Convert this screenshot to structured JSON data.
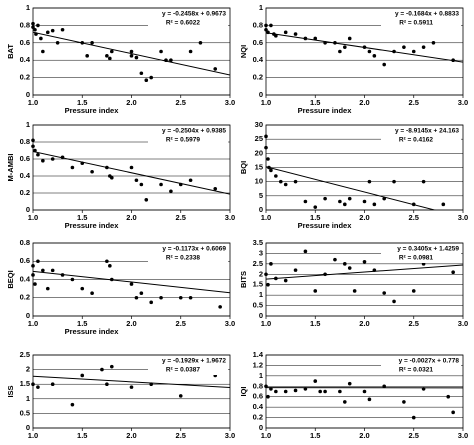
{
  "chart_data": [
    {
      "type": "scatter",
      "ylabel": "BAT",
      "xlabel": "Pressure index",
      "color": "#000000",
      "grid": true,
      "xlim": [
        1,
        3
      ],
      "ylim": [
        0,
        1
      ],
      "xticks": [
        {
          "value": 1,
          "label": "1.0"
        },
        {
          "value": 1.5,
          "label": "1.5"
        },
        {
          "value": 2,
          "label": "2.0"
        },
        {
          "value": 2.5,
          "label": "2.5"
        },
        {
          "value": 3,
          "label": "3.0"
        }
      ],
      "yticks": [
        0,
        0.2,
        0.4,
        0.6,
        0.8,
        1
      ],
      "x": [
        1.0,
        1.0,
        1.02,
        1.03,
        1.05,
        1.08,
        1.1,
        1.15,
        1.2,
        1.25,
        1.3,
        1.5,
        1.55,
        1.6,
        1.75,
        1.78,
        1.8,
        2.0,
        2.0,
        2.05,
        2.1,
        2.15,
        2.2,
        2.3,
        2.35,
        2.4,
        2.6,
        2.7,
        2.85
      ],
      "values": [
        0.82,
        0.78,
        0.75,
        0.7,
        0.8,
        0.65,
        0.5,
        0.72,
        0.74,
        0.6,
        0.75,
        0.6,
        0.45,
        0.6,
        0.45,
        0.42,
        0.5,
        0.5,
        0.45,
        0.43,
        0.25,
        0.17,
        0.2,
        0.5,
        0.4,
        0.4,
        0.5,
        0.6,
        0.3
      ],
      "equation": "y = -0.2458x + 0.9673",
      "r_squared": "R² = 0.6022",
      "trend": {
        "slope": -0.2458,
        "intercept": 0.9673
      }
    },
    {
      "type": "scatter",
      "ylabel": "NQI",
      "xlabel": "Pressure index",
      "color": "#000000",
      "grid": true,
      "xlim": [
        1,
        3
      ],
      "ylim": [
        0,
        1
      ],
      "xticks": [
        {
          "value": 1,
          "label": "1.0"
        },
        {
          "value": 1.5,
          "label": "1.5"
        },
        {
          "value": 2,
          "label": "2.0"
        },
        {
          "value": 2.5,
          "label": "2.5"
        },
        {
          "value": 3,
          "label": "3.0"
        }
      ],
      "yticks": [
        0,
        0.2,
        0.4,
        0.6,
        0.8,
        1
      ],
      "x": [
        1.0,
        1.0,
        1.02,
        1.05,
        1.08,
        1.1,
        1.2,
        1.3,
        1.4,
        1.5,
        1.6,
        1.7,
        1.75,
        1.8,
        1.85,
        2.0,
        2.05,
        2.1,
        2.2,
        2.3,
        2.4,
        2.5,
        2.6,
        2.7,
        2.9
      ],
      "values": [
        0.8,
        0.75,
        0.72,
        0.8,
        0.7,
        0.68,
        0.72,
        0.7,
        0.65,
        0.65,
        0.6,
        0.6,
        0.5,
        0.55,
        0.65,
        0.55,
        0.5,
        0.45,
        0.35,
        0.5,
        0.55,
        0.5,
        0.55,
        0.6,
        0.4
      ],
      "equation": "y = -0.1684x + 0.8833",
      "r_squared": "R² = 0.5911",
      "trend": {
        "slope": -0.1684,
        "intercept": 0.8833
      }
    },
    {
      "type": "scatter",
      "ylabel": "M-AMBI",
      "xlabel": "Pressure index",
      "color": "#000000",
      "grid": true,
      "xlim": [
        1,
        3
      ],
      "ylim": [
        0,
        1
      ],
      "xticks": [
        {
          "value": 1,
          "label": "1.0"
        },
        {
          "value": 1.5,
          "label": "1.5"
        },
        {
          "value": 2,
          "label": "2.0"
        },
        {
          "value": 2.5,
          "label": "2.5"
        },
        {
          "value": 3,
          "label": "3.0"
        }
      ],
      "yticks": [
        0,
        0.2,
        0.4,
        0.6,
        0.8,
        1
      ],
      "x": [
        1.0,
        1.0,
        1.02,
        1.05,
        1.1,
        1.2,
        1.3,
        1.4,
        1.5,
        1.6,
        1.75,
        1.78,
        1.8,
        2.0,
        2.05,
        2.1,
        2.15,
        2.3,
        2.4,
        2.5,
        2.6,
        2.85
      ],
      "values": [
        0.82,
        0.75,
        0.7,
        0.65,
        0.58,
        0.6,
        0.62,
        0.5,
        0.55,
        0.45,
        0.5,
        0.4,
        0.38,
        0.5,
        0.35,
        0.3,
        0.12,
        0.3,
        0.22,
        0.3,
        0.35,
        0.25
      ],
      "equation": "y = -0.2504x + 0.9385",
      "r_squared": "R² = 0.5979",
      "trend": {
        "slope": -0.2504,
        "intercept": 0.9385
      }
    },
    {
      "type": "scatter",
      "ylabel": "BQI",
      "xlabel": "Pressure index",
      "color": "#000000",
      "grid": true,
      "xlim": [
        1,
        3
      ],
      "ylim": [
        0,
        30
      ],
      "xticks": [
        {
          "value": 1,
          "label": "1.0"
        },
        {
          "value": 1.5,
          "label": "1.5"
        },
        {
          "value": 2,
          "label": "2.0"
        },
        {
          "value": 2.5,
          "label": "2.5"
        },
        {
          "value": 3,
          "label": "3.0"
        }
      ],
      "yticks": [
        0,
        5,
        10,
        15,
        20,
        25,
        30
      ],
      "x": [
        1.0,
        1.0,
        1.02,
        1.03,
        1.05,
        1.1,
        1.15,
        1.2,
        1.3,
        1.4,
        1.5,
        1.6,
        1.75,
        1.8,
        1.85,
        2.0,
        2.05,
        2.1,
        2.2,
        2.3,
        2.5,
        2.6,
        2.8
      ],
      "values": [
        26,
        22,
        18,
        15,
        14,
        12,
        10,
        9,
        10,
        3,
        1,
        4,
        3,
        2,
        4,
        3,
        10,
        2,
        4,
        10,
        2,
        10,
        2
      ],
      "equation": "y = -8.9145x + 24.163",
      "r_squared": "R² = 0.4162",
      "trend": {
        "slope": -8.9145,
        "intercept": 24.163
      }
    },
    {
      "type": "scatter",
      "ylabel": "BEQI",
      "xlabel": "Pressure index",
      "color": "#000000",
      "grid": true,
      "xlim": [
        1,
        3
      ],
      "ylim": [
        0,
        0.8
      ],
      "xticks": [
        {
          "value": 1,
          "label": "1.0"
        },
        {
          "value": 1.5,
          "label": "1.5"
        },
        {
          "value": 2,
          "label": "2.0"
        },
        {
          "value": 2.5,
          "label": "2.5"
        },
        {
          "value": 3,
          "label": "3.0"
        }
      ],
      "yticks": [
        0,
        0.2,
        0.4,
        0.6,
        0.8
      ],
      "x": [
        1.0,
        1.0,
        1.02,
        1.05,
        1.1,
        1.15,
        1.2,
        1.3,
        1.4,
        1.5,
        1.6,
        1.75,
        1.78,
        1.8,
        2.0,
        2.05,
        2.1,
        2.2,
        2.3,
        2.5,
        2.6,
        2.9
      ],
      "values": [
        0.55,
        0.45,
        0.35,
        0.6,
        0.5,
        0.3,
        0.5,
        0.45,
        0.4,
        0.3,
        0.25,
        0.6,
        0.55,
        0.4,
        0.35,
        0.2,
        0.25,
        0.15,
        0.2,
        0.2,
        0.2,
        0.1
      ],
      "equation": "y = -0.1173x + 0.6069",
      "r_squared": "R² = 0.2338",
      "trend": {
        "slope": -0.1173,
        "intercept": 0.6069
      }
    },
    {
      "type": "scatter",
      "ylabel": "BITS",
      "color": "#000000",
      "grid": true,
      "xlim": [
        1,
        3
      ],
      "ylim": [
        0,
        3.5
      ],
      "xticks": [
        {
          "value": 1,
          "label": "1.0"
        },
        {
          "value": 1.5,
          "label": "1.5"
        },
        {
          "value": 2,
          "label": "2.0"
        },
        {
          "value": 2.5,
          "label": "2.5"
        },
        {
          "value": 3,
          "label": "3.0"
        }
      ],
      "yticks": [
        0,
        0.5,
        1,
        1.5,
        2,
        2.5,
        3,
        3.5
      ],
      "x": [
        1.0,
        1.02,
        1.05,
        1.1,
        1.2,
        1.3,
        1.4,
        1.5,
        1.6,
        1.7,
        1.8,
        1.85,
        1.9,
        2.0,
        2.1,
        2.2,
        2.3,
        2.4,
        2.5,
        2.6,
        2.9
      ],
      "values": [
        2.0,
        1.5,
        2.5,
        1.8,
        1.7,
        2.2,
        3.1,
        1.2,
        2.0,
        2.7,
        2.5,
        2.3,
        1.2,
        2.6,
        2.2,
        1.1,
        0.7,
        3.0,
        1.2,
        2.5,
        2.1
      ],
      "equation": "y = 0.3405x + 1.4259",
      "r_squared": "R² = 0.0981",
      "trend": {
        "slope": 0.3405,
        "intercept": 1.4259
      }
    },
    {
      "type": "scatter",
      "ylabel": "ISS",
      "color": "#000000",
      "grid": true,
      "xlim": [
        1,
        3
      ],
      "ylim": [
        0,
        2.5
      ],
      "xticks": [
        {
          "value": 1,
          "label": "1.0"
        },
        {
          "value": 1.5,
          "label": "1.5"
        },
        {
          "value": 2,
          "label": "2.0"
        },
        {
          "value": 2.5,
          "label": "2.5"
        },
        {
          "value": 3,
          "label": "3.0"
        }
      ],
      "yticks": [
        0,
        0.5,
        1,
        1.5,
        2,
        2.5
      ],
      "x": [
        1.0,
        1.05,
        1.2,
        1.4,
        1.5,
        1.7,
        1.75,
        1.8,
        2.0,
        2.2,
        2.5,
        2.85
      ],
      "values": [
        1.5,
        1.4,
        1.5,
        0.8,
        1.8,
        2.0,
        1.5,
        2.1,
        1.4,
        1.5,
        1.1,
        1.8
      ],
      "equation": "y = -0.1929x + 1.9672",
      "r_squared": "R² = 0.0387",
      "trend": {
        "slope": -0.1929,
        "intercept": 1.9672
      }
    },
    {
      "type": "scatter",
      "ylabel": "IQI",
      "color": "#000000",
      "grid": true,
      "xlim": [
        1,
        3
      ],
      "ylim": [
        0,
        1.4
      ],
      "xticks": [
        {
          "value": 1,
          "label": "1.0"
        },
        {
          "value": 1.5,
          "label": "1.5"
        },
        {
          "value": 2,
          "label": "2.0"
        },
        {
          "value": 2.5,
          "label": "2.5"
        },
        {
          "value": 3,
          "label": "3.0"
        }
      ],
      "yticks": [
        0,
        0.2,
        0.4,
        0.6,
        0.8,
        1,
        1.2,
        1.4
      ],
      "x": [
        1.0,
        1.02,
        1.05,
        1.1,
        1.2,
        1.3,
        1.4,
        1.5,
        1.55,
        1.6,
        1.75,
        1.8,
        1.85,
        2.0,
        2.05,
        2.2,
        2.3,
        2.4,
        2.5,
        2.6,
        2.85,
        2.9
      ],
      "values": [
        0.8,
        0.6,
        0.75,
        0.7,
        0.7,
        0.72,
        0.75,
        0.9,
        0.7,
        0.7,
        0.7,
        0.5,
        0.85,
        0.7,
        0.55,
        0.8,
        1.1,
        0.5,
        0.2,
        0.75,
        0.6,
        0.3
      ],
      "equation": "y = -0.0027x + 0.778",
      "r_squared": "R² = 0.0321",
      "trend": {
        "slope": -0.0027,
        "intercept": 0.778
      }
    }
  ]
}
